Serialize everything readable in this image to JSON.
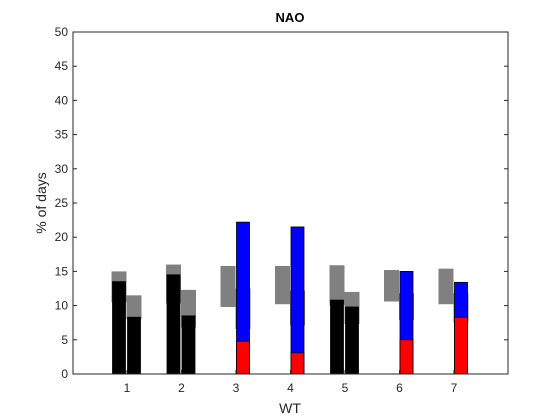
{
  "chart_data": {
    "type": "bar",
    "title": "NAO",
    "xlabel": "WT",
    "ylabel": "% of days",
    "ylim": [
      0,
      50
    ],
    "yticks": [
      "0",
      "5",
      "10",
      "15",
      "20",
      "25",
      "30",
      "35",
      "40",
      "45",
      "50"
    ],
    "categories": [
      "1",
      "2",
      "3",
      "4",
      "5",
      "6",
      "7"
    ],
    "grid": false,
    "legend": "none",
    "series": [
      {
        "values": [
          13.5,
          14.5,
          null,
          null,
          10.8,
          null,
          null
        ],
        "colors": [
          "#000000",
          "#000000",
          null,
          null,
          "#000000",
          null,
          null
        ],
        "range": [
          [
            10.5,
            15.0
          ],
          [
            10.3,
            16.0
          ],
          [
            9.8,
            15.8
          ],
          [
            10.2,
            15.8
          ],
          [
            10.1,
            15.9
          ],
          [
            10.6,
            15.2
          ],
          [
            10.2,
            15.4
          ]
        ]
      },
      {
        "values": [
          null,
          null,
          22.2,
          21.5,
          null,
          15.0,
          13.4
        ],
        "colors": [
          null,
          null,
          "#0000ff",
          "#0000ff",
          null,
          "#0000ff",
          "#0000ff"
        ],
        "range": [
          null,
          null,
          null,
          null,
          null,
          null,
          null
        ]
      },
      {
        "values": [
          8.3,
          8.5,
          4.8,
          3.1,
          9.8,
          5.0,
          8.3
        ],
        "colors": [
          "#000000",
          "#000000",
          "#ff0000",
          "#ff0000",
          "#000000",
          "#ff0000",
          "#ff0000"
        ],
        "range": [
          [
            8.0,
            11.5
          ],
          [
            6.8,
            12.3
          ],
          [
            6.6,
            12.5
          ],
          [
            7.1,
            12.2
          ],
          [
            7.3,
            12.0
          ],
          [
            7.9,
            11.8
          ],
          [
            7.5,
            11.8
          ]
        ]
      }
    ],
    "range_color": "#808080"
  }
}
